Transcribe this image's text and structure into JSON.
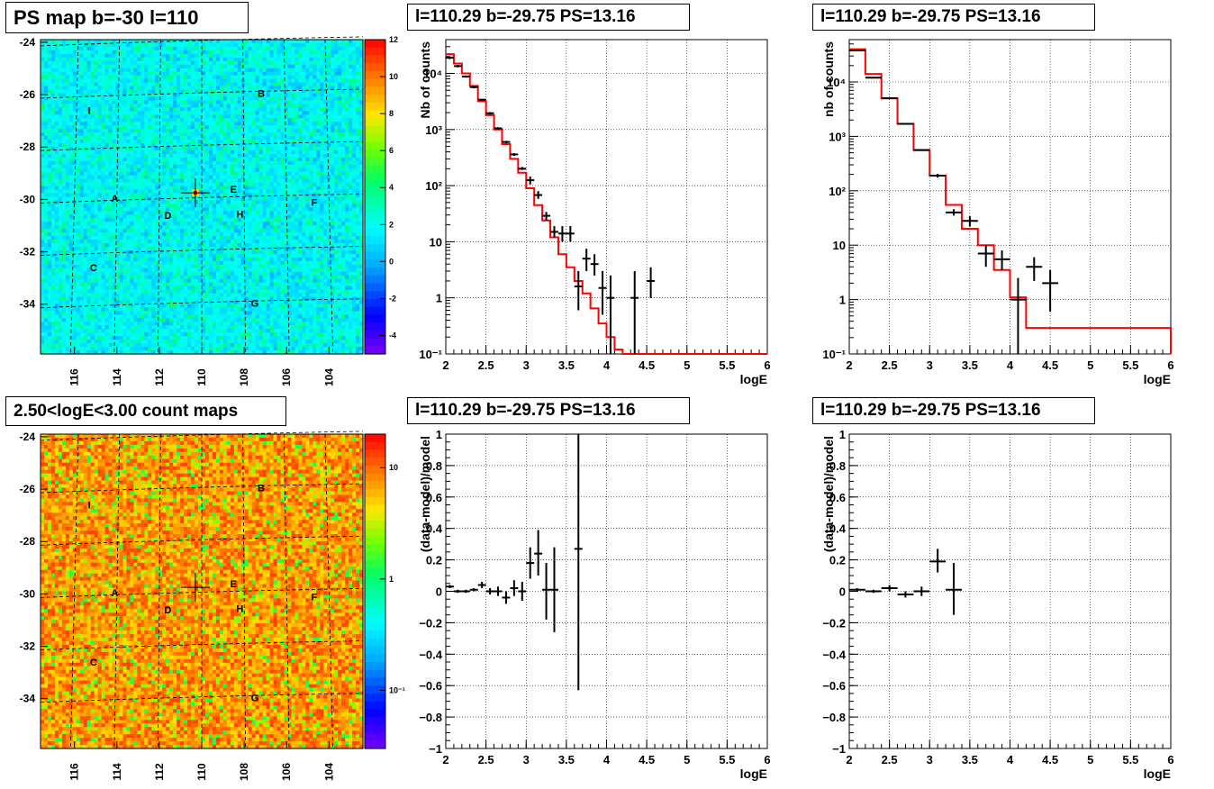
{
  "colors": {
    "frame": "#000000",
    "grid": "#000000",
    "model": "#ff0000",
    "data": "#000000"
  },
  "chart_data": [
    {
      "id": "psmap",
      "type": "heatmap",
      "title": "PS map b=-30 l=110",
      "x_ticks": [
        "116",
        "114",
        "112",
        "110",
        "108",
        "106",
        "104"
      ],
      "x_tick_values": [
        116,
        114,
        112,
        110,
        108,
        106,
        104
      ],
      "xlim": [
        117.6,
        102.4
      ],
      "y_ticks": [
        "-24",
        "-26",
        "-28",
        "-30",
        "-32",
        "-34"
      ],
      "y_tick_values": [
        -24,
        -26,
        -28,
        -30,
        -32,
        -34
      ],
      "ylim": [
        -35.9,
        -23.9
      ],
      "palette_ticks": [
        "12",
        "10",
        "8",
        "6",
        "4",
        "2",
        "0",
        "-2",
        "-4"
      ],
      "palette_values": [
        12,
        10,
        8,
        6,
        4,
        2,
        0,
        -2,
        -4
      ],
      "zlim": [
        -5,
        12
      ],
      "sources": [
        {
          "label": "A",
          "l": 114.1,
          "b": -29.95
        },
        {
          "label": "B",
          "l": 107.2,
          "b": -25.95
        },
        {
          "label": "C",
          "l": 115.1,
          "b": -32.6
        },
        {
          "label": "D",
          "l": 111.6,
          "b": -30.6
        },
        {
          "label": "E",
          "l": 108.5,
          "b": -29.6
        },
        {
          "label": "F",
          "l": 104.7,
          "b": -30.1
        },
        {
          "label": "G",
          "l": 107.5,
          "b": -33.95
        },
        {
          "label": "H",
          "l": 108.2,
          "b": -30.55
        },
        {
          "label": "I",
          "l": 115.3,
          "b": -26.6
        }
      ],
      "marker": {
        "l": 110.3,
        "b": -29.75
      }
    },
    {
      "id": "spec1",
      "type": "line",
      "title": "l=110.29 b=-29.75 PS=13.16",
      "xlabel": "logE",
      "ylabel": "Nb of counts",
      "xlim": [
        2,
        6
      ],
      "ylim": [
        0.1,
        40000
      ],
      "log_y": true,
      "grid": true,
      "x_ticks": [
        "2",
        "2.5",
        "3",
        "3.5",
        "4",
        "4.5",
        "5",
        "5.5",
        "6"
      ],
      "x_tick_values": [
        2,
        2.5,
        3,
        3.5,
        4,
        4.5,
        5,
        5.5,
        6
      ],
      "y_ticks": [
        "10⁻¹",
        "1",
        "10",
        "10²",
        "10³",
        "10⁴"
      ],
      "y_tick_values": [
        0.1,
        1,
        10,
        100,
        1000,
        10000
      ],
      "model": {
        "edges": [
          2,
          2.1,
          2.2,
          2.3,
          2.4,
          2.5,
          2.6,
          2.7,
          2.8,
          2.9,
          3.0,
          3.1,
          3.2,
          3.3,
          3.4,
          3.5,
          3.6,
          3.7,
          3.8,
          3.9,
          4.0,
          4.1,
          4.2,
          6.0
        ],
        "values": [
          22000,
          15000,
          10000,
          6000,
          3200,
          1800,
          1000,
          550,
          300,
          170,
          90,
          45,
          24,
          12,
          6,
          3.5,
          2,
          1.2,
          0.65,
          0.35,
          0.2,
          0.12,
          0.1
        ]
      },
      "data": {
        "x": [
          2.05,
          2.15,
          2.25,
          2.35,
          2.45,
          2.55,
          2.65,
          2.75,
          2.85,
          2.95,
          3.05,
          3.15,
          3.25,
          3.35,
          3.45,
          3.55,
          3.65,
          3.75,
          3.85,
          3.95,
          4.05,
          4.35,
          4.55
        ],
        "y": [
          19000,
          13500,
          8800,
          5700,
          3400,
          1950,
          1050,
          600,
          360,
          200,
          125,
          68,
          29,
          15,
          14,
          14,
          1.6,
          5,
          4,
          1.5,
          1,
          1,
          2
        ],
        "lo": [
          18000,
          12800,
          8400,
          5400,
          3300,
          1850,
          1000,
          570,
          340,
          190,
          105,
          58,
          24,
          12,
          10,
          10,
          0.6,
          3,
          2.5,
          0.5,
          0.1,
          0.1,
          1
        ],
        "hi": [
          20000,
          14200,
          9200,
          6000,
          3500,
          2050,
          1100,
          630,
          380,
          215,
          145,
          80,
          34,
          19,
          19,
          19,
          3,
          7.5,
          6,
          3,
          2.5,
          3,
          3.5
        ],
        "xerr": 0.05
      }
    },
    {
      "id": "spec2",
      "type": "line",
      "title": "l=110.29 b=-29.75 PS=13.16",
      "xlabel": "logE",
      "ylabel": "nb of counts",
      "xlim": [
        2,
        6
      ],
      "ylim": [
        0.1,
        60000
      ],
      "log_y": true,
      "grid": true,
      "x_ticks": [
        "2",
        "2.5",
        "3",
        "3.5",
        "4",
        "4.5",
        "5",
        "5.5",
        "6"
      ],
      "x_tick_values": [
        2,
        2.5,
        3,
        3.5,
        4,
        4.5,
        5,
        5.5,
        6
      ],
      "y_ticks": [
        "10⁻¹",
        "1",
        "10",
        "10²",
        "10³",
        "10⁴"
      ],
      "y_tick_values": [
        0.1,
        1,
        10,
        100,
        1000,
        10000
      ],
      "model": {
        "edges": [
          2,
          2.2,
          2.4,
          2.6,
          2.8,
          3.0,
          3.2,
          3.4,
          3.6,
          3.8,
          4.0,
          4.2,
          6.0
        ],
        "values": [
          40000,
          14000,
          5000,
          1700,
          560,
          190,
          55,
          20,
          10,
          3.5,
          1.1,
          0.3,
          0.1
        ]
      },
      "data": {
        "x": [
          2.1,
          2.3,
          2.5,
          2.7,
          2.9,
          3.1,
          3.3,
          3.5,
          3.7,
          3.9,
          4.1,
          4.3,
          4.5
        ],
        "y": [
          38000,
          12000,
          5000,
          1700,
          560,
          190,
          40,
          28,
          7,
          5.5,
          1,
          4,
          2
        ],
        "lo": [
          37000,
          11700,
          4900,
          1650,
          545,
          175,
          35,
          22,
          4,
          3.5,
          0.1,
          2.2,
          0.6
        ],
        "hi": [
          39000,
          12300,
          5100,
          1750,
          575,
          205,
          46,
          34,
          10,
          8,
          2.5,
          6,
          3.5
        ],
        "xerr": 0.1
      }
    },
    {
      "id": "countmap",
      "type": "heatmap",
      "title": "2.50<logE<3.00 count maps",
      "x_ticks": [
        "116",
        "114",
        "112",
        "110",
        "108",
        "106",
        "104"
      ],
      "x_tick_values": [
        116,
        114,
        112,
        110,
        108,
        106,
        104
      ],
      "xlim": [
        117.6,
        102.4
      ],
      "y_ticks": [
        "-24",
        "-26",
        "-28",
        "-30",
        "-32",
        "-34"
      ],
      "y_tick_values": [
        -24,
        -26,
        -28,
        -30,
        -32,
        -34
      ],
      "ylim": [
        -35.9,
        -23.9
      ],
      "palette_ticks": [
        "10",
        "1",
        "10⁻¹"
      ],
      "palette_values": [
        10,
        1,
        0.1
      ],
      "zlim": [
        0.03,
        20
      ],
      "log_z": true,
      "sources": [
        {
          "label": "A",
          "l": 114.1,
          "b": -29.95
        },
        {
          "label": "B",
          "l": 107.2,
          "b": -25.95
        },
        {
          "label": "C",
          "l": 115.1,
          "b": -32.6
        },
        {
          "label": "D",
          "l": 111.6,
          "b": -30.6
        },
        {
          "label": "E",
          "l": 108.5,
          "b": -29.6
        },
        {
          "label": "F",
          "l": 104.7,
          "b": -30.1
        },
        {
          "label": "G",
          "l": 107.5,
          "b": -33.95
        },
        {
          "label": "H",
          "l": 108.2,
          "b": -30.55
        },
        {
          "label": "I",
          "l": 115.3,
          "b": -26.6
        }
      ],
      "marker": {
        "l": 110.3,
        "b": -29.75
      }
    },
    {
      "id": "resid1",
      "type": "scatter",
      "title": "l=110.29 b=-29.75 PS=13.16",
      "xlabel": "logE",
      "ylabel": "(data-model)/model",
      "xlim": [
        2,
        6
      ],
      "ylim": [
        -1,
        1
      ],
      "grid": true,
      "x_ticks": [
        "2",
        "2.5",
        "3",
        "3.5",
        "4",
        "4.5",
        "5",
        "5.5",
        "6"
      ],
      "x_tick_values": [
        2,
        2.5,
        3,
        3.5,
        4,
        4.5,
        5,
        5.5,
        6
      ],
      "y_ticks": [
        "−1",
        "−0.8",
        "−0.6",
        "−0.4",
        "−0.2",
        "0",
        "0.2",
        "0.4",
        "0.6",
        "0.8",
        "1"
      ],
      "y_tick_values": [
        -1,
        -0.8,
        -0.6,
        -0.4,
        -0.2,
        0,
        0.2,
        0.4,
        0.6,
        0.8,
        1
      ],
      "data": {
        "x": [
          2.05,
          2.15,
          2.25,
          2.35,
          2.45,
          2.55,
          2.65,
          2.75,
          2.85,
          2.95,
          3.05,
          3.15,
          3.25,
          3.35,
          3.65
        ],
        "y": [
          0.03,
          0.0,
          0.0,
          0.01,
          0.04,
          0.0,
          0.0,
          -0.04,
          0.02,
          0.0,
          0.18,
          0.24,
          0.01,
          0.01,
          0.27
        ],
        "lo": [
          0.02,
          -0.01,
          -0.01,
          0.0,
          0.02,
          -0.02,
          -0.03,
          -0.08,
          -0.03,
          -0.06,
          0.08,
          0.1,
          -0.18,
          -0.26,
          -0.63
        ],
        "hi": [
          0.04,
          0.01,
          0.01,
          0.02,
          0.06,
          0.02,
          0.03,
          0.0,
          0.07,
          0.06,
          0.28,
          0.39,
          0.18,
          0.28,
          1.0
        ],
        "xerr": 0.05
      }
    },
    {
      "id": "resid2",
      "type": "scatter",
      "title": "l=110.29 b=-29.75 PS=13.16",
      "xlabel": "logE",
      "ylabel": "(data-model)/model",
      "xlim": [
        2,
        6
      ],
      "ylim": [
        -1,
        1
      ],
      "grid": true,
      "x_ticks": [
        "2",
        "2.5",
        "3",
        "3.5",
        "4",
        "4.5",
        "5",
        "5.5",
        "6"
      ],
      "x_tick_values": [
        2,
        2.5,
        3,
        3.5,
        4,
        4.5,
        5,
        5.5,
        6
      ],
      "y_ticks": [
        "−1",
        "−0.8",
        "−0.6",
        "−0.4",
        "−0.2",
        "0",
        "0.2",
        "0.4",
        "0.6",
        "0.8",
        "1"
      ],
      "y_tick_values": [
        -1,
        -0.8,
        -0.6,
        -0.4,
        -0.2,
        0,
        0.2,
        0.4,
        0.6,
        0.8,
        1
      ],
      "data": {
        "x": [
          2.1,
          2.3,
          2.5,
          2.7,
          2.9,
          3.1,
          3.3
        ],
        "y": [
          0.01,
          0.0,
          0.02,
          -0.02,
          0.0,
          0.19,
          0.01
        ],
        "lo": [
          0.0,
          -0.01,
          0.0,
          -0.04,
          -0.03,
          0.12,
          -0.15
        ],
        "hi": [
          0.02,
          0.01,
          0.04,
          0.0,
          0.03,
          0.27,
          0.18
        ],
        "xerr": 0.1
      }
    }
  ]
}
